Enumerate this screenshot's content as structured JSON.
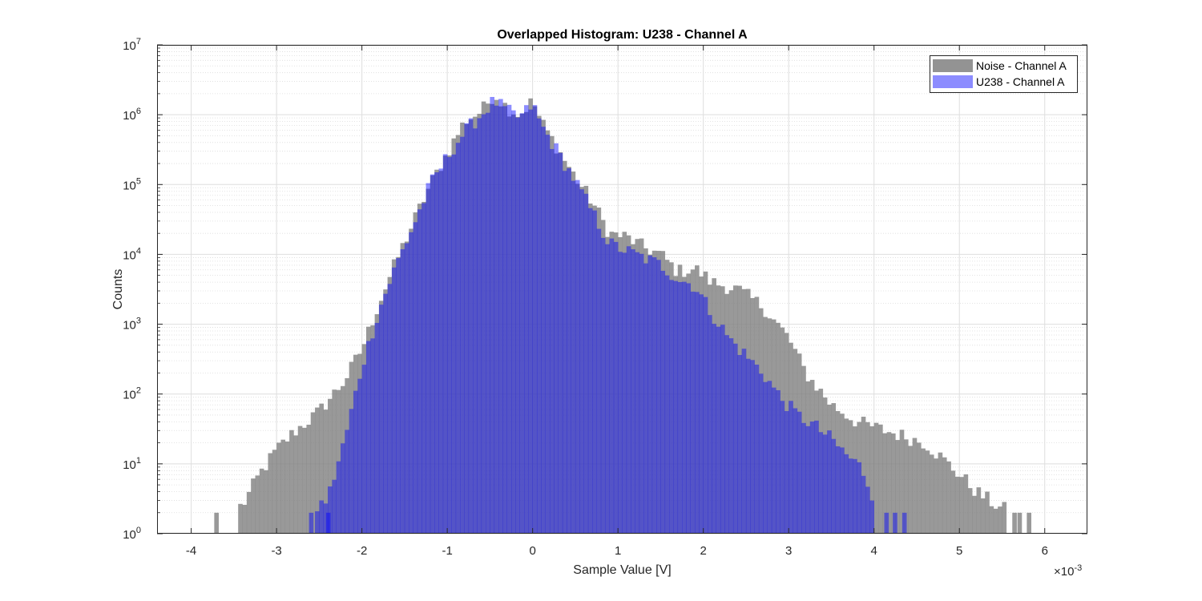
{
  "chart_data": {
    "type": "histogram",
    "title": "Overlapped Histogram: U238 - Channel A",
    "xlabel": "Sample Value [V]",
    "ylabel": "Counts",
    "x_exponent_label": "×10",
    "x_exponent_power": "-3",
    "x_scale": 0.001,
    "xlim": [
      -4.4,
      6.5
    ],
    "ylim": [
      1,
      10000000
    ],
    "y_scale": "log",
    "grid": true,
    "minor_grid": true,
    "legend_position": "top-right",
    "x_ticks": [
      {
        "value": -4,
        "label": "-4"
      },
      {
        "value": -3,
        "label": "-3"
      },
      {
        "value": -2,
        "label": "-2"
      },
      {
        "value": -1,
        "label": "-1"
      },
      {
        "value": 0,
        "label": "0"
      },
      {
        "value": 1,
        "label": "1"
      },
      {
        "value": 2,
        "label": "2"
      },
      {
        "value": 3,
        "label": "3"
      },
      {
        "value": 4,
        "label": "4"
      },
      {
        "value": 5,
        "label": "5"
      },
      {
        "value": 6,
        "label": "6"
      }
    ],
    "y_ticks": [
      {
        "exp": 0,
        "base": "10",
        "power": "0"
      },
      {
        "exp": 1,
        "base": "10",
        "power": "1"
      },
      {
        "exp": 2,
        "base": "10",
        "power": "2"
      },
      {
        "exp": 3,
        "base": "10",
        "power": "3"
      },
      {
        "exp": 4,
        "base": "10",
        "power": "4"
      },
      {
        "exp": 5,
        "base": "10",
        "power": "5"
      },
      {
        "exp": 6,
        "base": "10",
        "power": "6"
      },
      {
        "exp": 7,
        "base": "10",
        "power": "7"
      }
    ],
    "series": [
      {
        "name": "Noise - Channel A",
        "color": "#808080",
        "opacity": 0.8,
        "profile": [
          [
            -3.75,
            0.3
          ],
          [
            -3.4,
            0.4
          ],
          [
            -3.2,
            0.85
          ],
          [
            -3.0,
            1.2
          ],
          [
            -2.8,
            1.45
          ],
          [
            -2.5,
            1.75
          ],
          [
            -2.2,
            2.2
          ],
          [
            -2.0,
            2.65
          ],
          [
            -1.8,
            3.3
          ],
          [
            -1.6,
            3.9
          ],
          [
            -1.4,
            4.45
          ],
          [
            -1.2,
            5.0
          ],
          [
            -1.0,
            5.45
          ],
          [
            -0.8,
            5.9
          ],
          [
            -0.6,
            6.05
          ],
          [
            -0.45,
            6.3
          ],
          [
            -0.3,
            6.1
          ],
          [
            -0.15,
            6.0
          ],
          [
            0.0,
            6.2
          ],
          [
            0.1,
            5.9
          ],
          [
            0.3,
            5.5
          ],
          [
            0.5,
            5.1
          ],
          [
            0.7,
            4.75
          ],
          [
            0.9,
            4.3
          ],
          [
            1.1,
            4.25
          ],
          [
            1.3,
            4.1
          ],
          [
            1.5,
            4.0
          ],
          [
            1.7,
            3.75
          ],
          [
            1.9,
            3.8
          ],
          [
            2.0,
            3.7
          ],
          [
            2.1,
            3.6
          ],
          [
            2.4,
            3.5
          ],
          [
            2.7,
            3.25
          ],
          [
            3.0,
            2.8
          ],
          [
            3.2,
            2.3
          ],
          [
            3.5,
            1.85
          ],
          [
            3.8,
            1.6
          ],
          [
            4.2,
            1.45
          ],
          [
            4.6,
            1.3
          ],
          [
            5.0,
            0.85
          ],
          [
            5.2,
            0.6
          ],
          [
            5.5,
            0.35
          ]
        ],
        "range": [
          -3.45,
          5.5
        ],
        "isolated_bins": [
          -3.73,
          5.62,
          5.68,
          5.79
        ],
        "bin_width": 0.05
      },
      {
        "name": "U238 - Channel A",
        "color": "#0000ff",
        "opacity": 0.45,
        "profile": [
          [
            -2.6,
            0.3
          ],
          [
            -2.4,
            0.5
          ],
          [
            -2.2,
            1.35
          ],
          [
            -2.0,
            2.4
          ],
          [
            -1.8,
            3.2
          ],
          [
            -1.6,
            3.85
          ],
          [
            -1.4,
            4.4
          ],
          [
            -1.2,
            5.0
          ],
          [
            -1.0,
            5.4
          ],
          [
            -0.8,
            5.75
          ],
          [
            -0.6,
            6.0
          ],
          [
            -0.45,
            6.2
          ],
          [
            -0.3,
            6.05
          ],
          [
            -0.15,
            5.95
          ],
          [
            0.0,
            6.15
          ],
          [
            0.1,
            5.85
          ],
          [
            0.3,
            5.45
          ],
          [
            0.5,
            5.05
          ],
          [
            0.7,
            4.6
          ],
          [
            0.9,
            4.15
          ],
          [
            1.1,
            4.05
          ],
          [
            1.3,
            3.95
          ],
          [
            1.5,
            3.85
          ],
          [
            1.7,
            3.65
          ],
          [
            1.9,
            3.55
          ],
          [
            2.1,
            3.15
          ],
          [
            2.3,
            2.8
          ],
          [
            2.5,
            2.55
          ],
          [
            2.7,
            2.3
          ],
          [
            2.9,
            1.95
          ],
          [
            3.1,
            1.7
          ],
          [
            3.3,
            1.55
          ],
          [
            3.5,
            1.35
          ],
          [
            3.7,
            1.1
          ],
          [
            3.85,
            0.95
          ],
          [
            4.0,
            0.5
          ]
        ],
        "range": [
          -2.55,
          3.98
        ],
        "isolated_bins": [
          -2.62,
          -2.42,
          4.12,
          4.22,
          4.33
        ],
        "bin_width": 0.05
      }
    ]
  }
}
